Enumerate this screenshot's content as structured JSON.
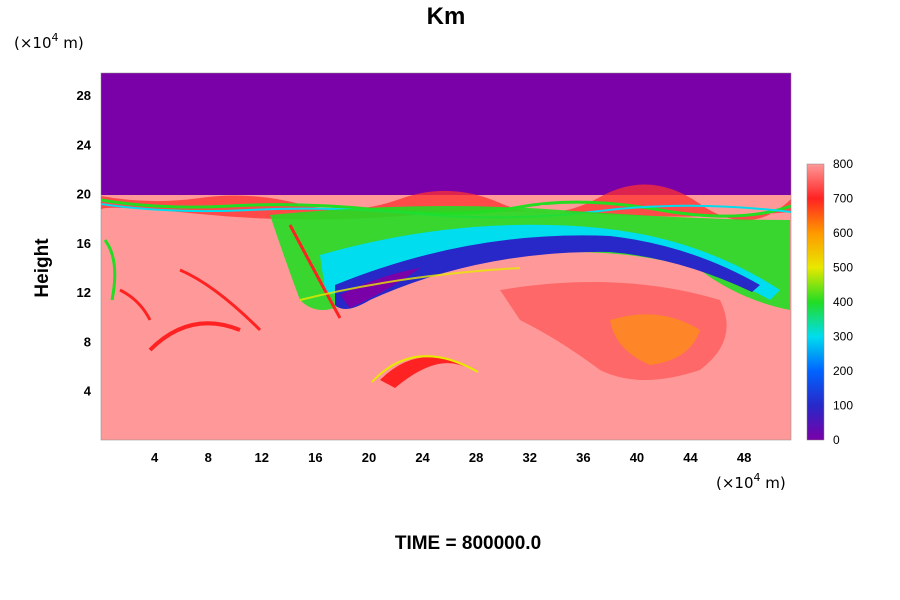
{
  "chart_data": {
    "type": "heatmap",
    "title": "Km",
    "ylabel": "Height",
    "xlabel": "",
    "x_unit_label": "(×10⁴ m)",
    "y_unit_label": "(×10⁴ m)",
    "x_unit_base": "(×10",
    "x_unit_exp": "4",
    "x_unit_tail": " m)",
    "y_unit_base": "(×10",
    "y_unit_exp": "4",
    "y_unit_tail": " m)",
    "xlim": [
      0,
      51.5
    ],
    "ylim": [
      0,
      29.8
    ],
    "xticks": [
      4,
      8,
      12,
      16,
      20,
      24,
      28,
      32,
      36,
      40,
      44,
      48
    ],
    "yticks": [
      4,
      8,
      12,
      16,
      20,
      24,
      28
    ],
    "colorbar": {
      "min": 0,
      "max": 800,
      "ticks": [
        0,
        100,
        200,
        300,
        400,
        500,
        600,
        700,
        800
      ],
      "stops": [
        "#7a00a8",
        "#2828c8",
        "#0064ff",
        "#00ddee",
        "#22dd22",
        "#e8e800",
        "#ff9900",
        "#ff2222",
        "#ff9999"
      ]
    },
    "regions": [
      {
        "description": "upper layer above ~20",
        "y_range": [
          20,
          29.8
        ],
        "value": 0
      },
      {
        "description": "lower domain",
        "y_range": [
          0,
          20
        ],
        "value": 800
      }
    ],
    "footer": "TIME = 800000.0",
    "footer_label": "TIME",
    "footer_value": "800000.0"
  }
}
